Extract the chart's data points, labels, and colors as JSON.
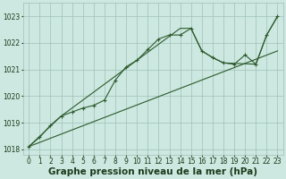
{
  "background_color": "#cce8e0",
  "grid_color": "#a0c0b8",
  "line_color": "#2d5a2d",
  "text_color": "#1a3a1a",
  "xlabel": "Graphe pression niveau de la mer (hPa)",
  "xlabel_fontsize": 7.5,
  "ylim": [
    1017.8,
    1023.5
  ],
  "xlim": [
    -0.5,
    23.5
  ],
  "yticks": [
    1018,
    1019,
    1020,
    1021,
    1022,
    1023
  ],
  "xticks": [
    0,
    1,
    2,
    3,
    4,
    5,
    6,
    7,
    8,
    9,
    10,
    11,
    12,
    13,
    14,
    15,
    16,
    17,
    18,
    19,
    20,
    21,
    22,
    23
  ],
  "xtick_labels": [
    "0",
    "1",
    "2",
    "3",
    "4",
    "5",
    "6",
    "7",
    "8",
    "9",
    "10",
    "11",
    "12",
    "13",
    "14",
    "15",
    "16",
    "17",
    "18",
    "19",
    "20",
    "21",
    "22",
    "23"
  ],
  "series1_x": [
    0,
    1,
    2,
    3,
    4,
    5,
    6,
    7,
    8,
    9,
    10,
    11,
    12,
    13,
    14,
    15,
    16,
    17,
    18,
    19,
    20,
    21,
    22,
    23
  ],
  "series1_y": [
    1018.1,
    1018.45,
    1018.9,
    1019.25,
    1019.4,
    1019.55,
    1019.65,
    1019.85,
    1020.6,
    1021.1,
    1021.35,
    1021.75,
    1022.15,
    1022.3,
    1022.3,
    1022.55,
    1021.7,
    1021.45,
    1021.25,
    1021.2,
    1021.55,
    1021.2,
    1022.3,
    1023.0
  ],
  "series2_x": [
    0,
    23
  ],
  "series2_y": [
    1018.1,
    1021.7
  ],
  "series3_x": [
    0,
    3,
    14,
    15,
    16,
    17,
    18,
    21,
    22,
    23
  ],
  "series3_y": [
    1018.1,
    1019.25,
    1022.55,
    1022.55,
    1021.7,
    1021.45,
    1021.25,
    1021.2,
    1022.3,
    1023.0
  ],
  "tick_fontsize": 5.5,
  "marker": "+",
  "markersize": 3.5,
  "linewidth": 0.8
}
